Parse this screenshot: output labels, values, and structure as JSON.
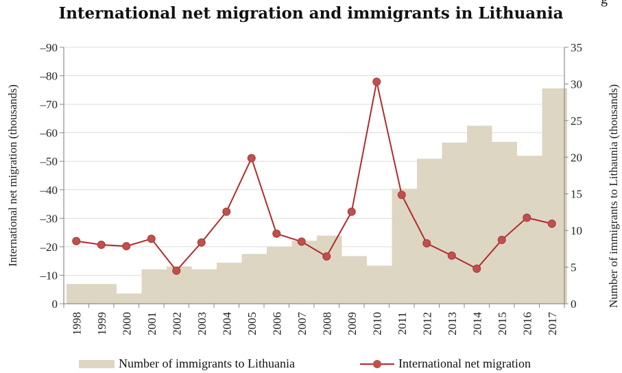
{
  "page": {
    "title": "International net migration and immigrants in Lithuania",
    "cut_text": "g"
  },
  "chart_data": {
    "type": "bar",
    "title": "International net migration and immigrants in Lithuania",
    "categories": [
      "1998",
      "1999",
      "2000",
      "2001",
      "2002",
      "2003",
      "2004",
      "2005",
      "2006",
      "2007",
      "2008",
      "2009",
      "2010",
      "2011",
      "2012",
      "2013",
      "2014",
      "2015",
      "2016",
      "2017"
    ],
    "series": [
      {
        "name": "Number of immigrants to Lithuania",
        "type": "bar",
        "axis": "right",
        "color": "#ddd6c3",
        "values": [
          2.7,
          2.7,
          1.4,
          4.7,
          5.1,
          4.7,
          5.6,
          6.8,
          7.8,
          8.6,
          9.3,
          6.5,
          5.2,
          15.7,
          19.8,
          22.0,
          24.3,
          22.1,
          20.2,
          29.4
        ]
      },
      {
        "name": "International net migration",
        "type": "line",
        "axis": "left",
        "color": "#b12a2a",
        "marker_color": "#c0504d",
        "values": [
          -22.0,
          -20.7,
          -20.2,
          -22.8,
          -11.6,
          -21.5,
          -32.3,
          -51.1,
          -24.6,
          -21.8,
          -16.6,
          -32.3,
          -77.9,
          -38.2,
          -21.2,
          -16.9,
          -12.3,
          -22.4,
          -30.2,
          -28.1
        ]
      }
    ],
    "ylabel": "International net migration (thousands)",
    "ylabel_right": "Number of immigrants to Lithaunia (thousands)",
    "ylim": [
      0,
      -90
    ],
    "y_ticks": [
      "0",
      "–10",
      "–20",
      "–30",
      "–40",
      "–50",
      "–60",
      "–70",
      "–80",
      "–90"
    ],
    "ylim_right": [
      0,
      35
    ],
    "y_ticks_right": [
      "0",
      "5",
      "10",
      "15",
      "20",
      "25",
      "30",
      "35"
    ],
    "grid": true,
    "legend": "bottom"
  }
}
